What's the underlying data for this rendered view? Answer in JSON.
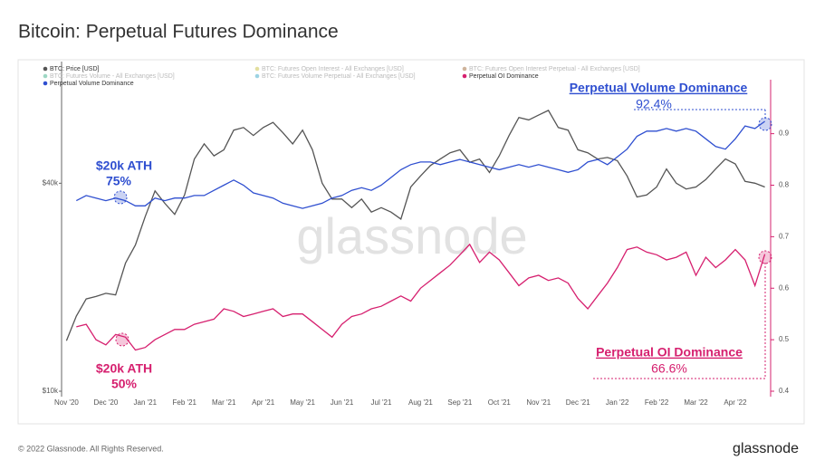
{
  "chart_data": {
    "type": "line",
    "title": "Bitcoin: Perpetual Futures Dominance",
    "watermark": "glassnode",
    "footer": "© 2022 Glassnode. All Rights Reserved.",
    "brand": "glassnode",
    "log_y": true,
    "categories": [
      "Nov '20",
      null,
      null,
      null,
      "Dec '20",
      null,
      null,
      null,
      "Jan '21",
      null,
      null,
      null,
      "Feb '21",
      null,
      null,
      null,
      "Mar '21",
      null,
      null,
      null,
      "Apr '21",
      null,
      null,
      null,
      "May '21",
      null,
      null,
      null,
      "Jun '21",
      null,
      null,
      null,
      "Jul '21",
      null,
      null,
      null,
      "Aug '21",
      null,
      null,
      null,
      "Sep '21",
      null,
      null,
      null,
      "Oct '21",
      null,
      null,
      null,
      "Nov '21",
      null,
      null,
      null,
      "Dec '21",
      null,
      null,
      null,
      "Jan '22",
      null,
      null,
      null,
      "Feb '22",
      null,
      null,
      null,
      "Mar '22",
      null,
      null,
      null,
      "Apr '22",
      null,
      null,
      null
    ],
    "ylim": [
      10000,
      90000
    ],
    "yticks": [
      {
        "value": 10000,
        "label": "$10k"
      },
      {
        "value": 40000,
        "label": "$40k"
      }
    ],
    "y2lim": [
      0.4,
      1.04
    ],
    "y2ticks": [
      0.4,
      0.5,
      0.6,
      0.7,
      0.8,
      0.9
    ],
    "legend": [
      {
        "name": "BTC: Price [USD]",
        "color": "#555555",
        "shown": true
      },
      {
        "name": "BTC: Futures Volume - All Exchanges [USD]",
        "color": "#3cb08a",
        "shown": false
      },
      {
        "name": "Perpetual Volume Dominance",
        "color": "#2f4fd0",
        "shown": true
      },
      {
        "name": "BTC: Futures Open Interest - All Exchanges [USD]",
        "color": "#c8c040",
        "shown": false
      },
      {
        "name": "BTC: Futures Volume Perpetual - All Exchanges [USD]",
        "color": "#3aa8c8",
        "shown": false
      },
      {
        "name": "BTC: Futures Open Interest Perpetual - All Exchanges [USD]",
        "color": "#a06a3a",
        "shown": false
      },
      {
        "name": "Perpetual OI Dominance",
        "color": "#d6206f",
        "shown": true
      }
    ],
    "series": [
      {
        "name": "BTC: Price [USD]",
        "color": "#555555",
        "axis": "y",
        "values": [
          14000,
          16500,
          18500,
          18800,
          19200,
          19000,
          23500,
          26500,
          32000,
          38000,
          35000,
          32500,
          37000,
          47000,
          52000,
          48000,
          50000,
          57000,
          58000,
          55000,
          58000,
          60000,
          56000,
          52000,
          57000,
          50000,
          40000,
          36000,
          36000,
          34000,
          36000,
          33000,
          34000,
          33000,
          31500,
          39000,
          42000,
          45000,
          47000,
          49000,
          50000,
          46000,
          47000,
          43000,
          48000,
          55000,
          62000,
          61000,
          63000,
          65000,
          58000,
          57000,
          50000,
          49000,
          47000,
          47500,
          46500,
          42000,
          36500,
          37000,
          39000,
          44000,
          40000,
          38500,
          39000,
          41000,
          44000,
          47000,
          45500,
          40500,
          40000,
          39000
        ]
      },
      {
        "name": "Perpetual Volume Dominance",
        "color": "#2f4fd0",
        "axis": "y2",
        "values": [
          null,
          0.77,
          0.78,
          0.775,
          0.77,
          0.775,
          0.77,
          0.76,
          0.76,
          0.775,
          0.77,
          0.775,
          0.775,
          0.78,
          0.78,
          0.79,
          0.8,
          0.81,
          0.8,
          0.785,
          0.78,
          0.775,
          0.765,
          0.76,
          0.755,
          0.76,
          0.765,
          0.775,
          0.78,
          0.79,
          0.795,
          0.79,
          0.8,
          0.815,
          0.83,
          0.84,
          0.845,
          0.845,
          0.84,
          0.845,
          0.85,
          0.845,
          0.84,
          0.835,
          0.83,
          0.835,
          0.84,
          0.835,
          0.84,
          0.835,
          0.83,
          0.825,
          0.83,
          0.845,
          0.85,
          0.84,
          0.855,
          0.87,
          0.895,
          0.905,
          0.905,
          0.91,
          0.905,
          0.91,
          0.905,
          0.89,
          0.875,
          0.87,
          0.89,
          0.915,
          0.91,
          0.924
        ]
      },
      {
        "name": "Perpetual OI Dominance",
        "color": "#d6206f",
        "axis": "y2",
        "values": [
          null,
          0.525,
          0.53,
          0.5,
          0.49,
          0.51,
          0.505,
          0.48,
          0.485,
          0.5,
          0.51,
          0.52,
          0.52,
          0.53,
          0.535,
          0.54,
          0.56,
          0.555,
          0.545,
          0.55,
          0.555,
          0.56,
          0.545,
          0.55,
          0.55,
          0.535,
          0.52,
          0.505,
          0.53,
          0.545,
          0.55,
          0.56,
          0.565,
          0.575,
          0.585,
          0.575,
          0.6,
          0.615,
          0.63,
          0.645,
          0.665,
          0.685,
          0.65,
          0.67,
          0.655,
          0.63,
          0.605,
          0.62,
          0.625,
          0.615,
          0.62,
          0.61,
          0.58,
          0.56,
          0.585,
          0.61,
          0.64,
          0.675,
          0.68,
          0.67,
          0.665,
          0.655,
          0.66,
          0.67,
          0.625,
          0.66,
          0.64,
          0.655,
          0.675,
          0.655,
          0.605,
          0.666
        ]
      }
    ],
    "annotations": [
      {
        "text": "Perpetual Volume Dominance",
        "value": "92.4%"
      },
      {
        "text": "Perpetual OI Dominance",
        "value": "66.6%"
      },
      {
        "text": "$20k ATH",
        "value": "75%"
      },
      {
        "text": "$20k ATH",
        "value": "50%"
      }
    ]
  }
}
